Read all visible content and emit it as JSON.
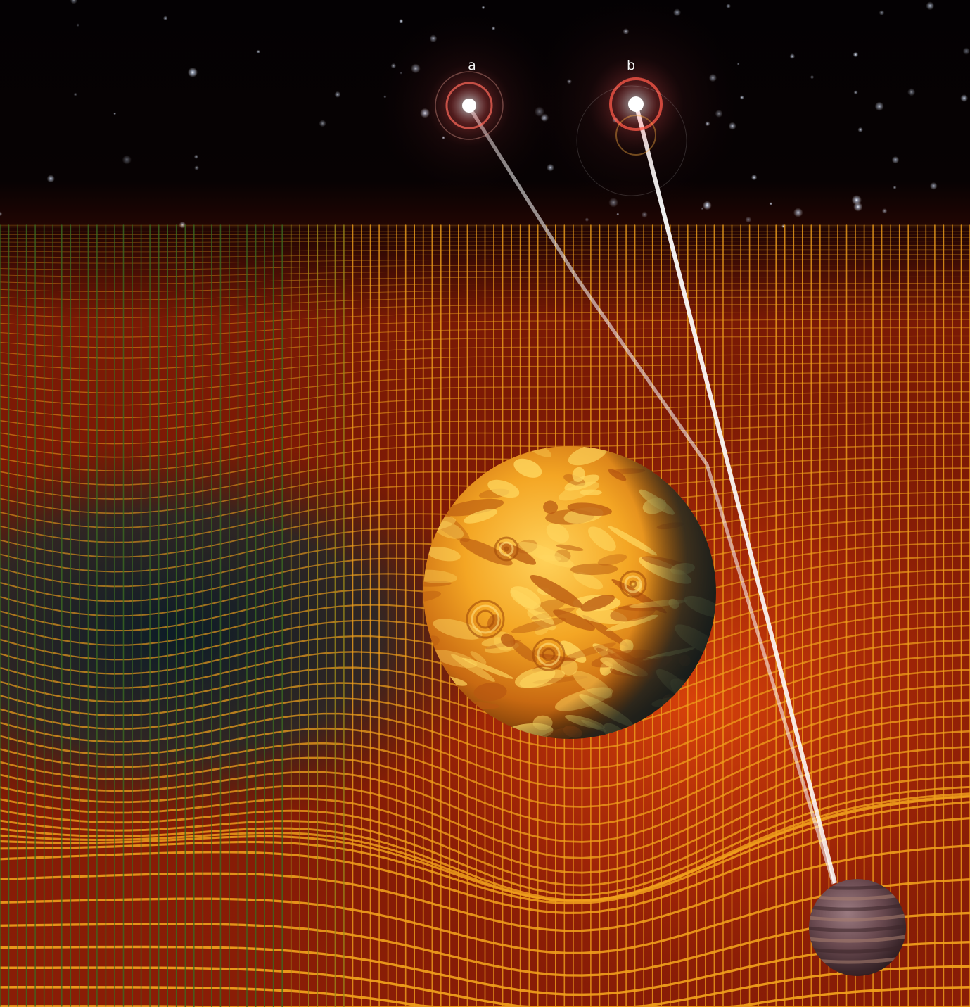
{
  "labels": {
    "a": "a",
    "b": "b"
  },
  "colors": {
    "sky": "#050204",
    "grid_line": "#f2a21a",
    "grid_dark": "#6b1204",
    "grid_warm": "#c0360a",
    "trough": "#0a2a38",
    "planet_bright": "#f6b22a",
    "planet_dark": "#b0520a",
    "moon": "#5e4148",
    "star_glow": "#ff5a5a",
    "light_ray": "#ffffff"
  },
  "scene": {
    "elements": [
      "starfield",
      "spacetime-grid",
      "large-planet",
      "small-planet",
      "light-ray-a",
      "light-ray-b",
      "bright-star-a",
      "bright-star-b"
    ]
  }
}
